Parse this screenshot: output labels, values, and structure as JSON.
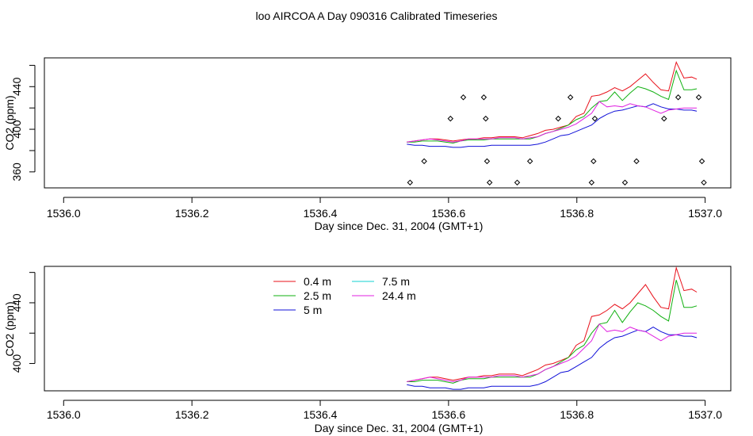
{
  "title": "loo AIRCOA A  Day 090316  Calibrated Timeseries",
  "colors": {
    "s04": "#e8101a",
    "s25": "#10b010",
    "s5": "#1010d8",
    "s75": "#10d0d0",
    "s244": "#e020e0"
  },
  "chart_data": [
    {
      "type": "line",
      "xlabel": "Day since Dec. 31, 2004 (GMT+1)",
      "ylabel": "CO2 (ppm)",
      "xlim": [
        1535.97,
        1537.04
      ],
      "ylim": [
        345,
        467
      ],
      "xticks": [
        1536.0,
        1536.2,
        1536.4,
        1536.6,
        1536.8,
        1537.0
      ],
      "xtick_labels": [
        "1536.0",
        "1536.2",
        "1536.4",
        "1536.6",
        "1536.8",
        "1537.0"
      ],
      "yticks": [
        360,
        380,
        400,
        420,
        440,
        460
      ],
      "ytick_labels": [
        "360",
        "",
        "400",
        "",
        "440",
        ""
      ],
      "grid": false,
      "x": [
        1536.535,
        1536.547,
        1536.559,
        1536.571,
        1536.583,
        1536.595,
        1536.607,
        1536.619,
        1536.631,
        1536.643,
        1536.655,
        1536.667,
        1536.679,
        1536.691,
        1536.703,
        1536.715,
        1536.727,
        1536.739,
        1536.751,
        1536.763,
        1536.775,
        1536.787,
        1536.799,
        1536.811,
        1536.823,
        1536.835,
        1536.847,
        1536.859,
        1536.871,
        1536.883,
        1536.895,
        1536.907,
        1536.919,
        1536.931,
        1536.943,
        1536.955,
        1536.967,
        1536.979,
        1536.987
      ],
      "series": [
        {
          "color_key": "s04",
          "values": [
            388,
            389,
            390,
            391,
            391,
            390,
            389,
            390,
            391,
            391,
            392,
            392,
            393,
            393,
            393,
            392,
            394,
            396,
            399,
            400,
            402,
            404,
            412,
            415,
            431,
            432,
            435,
            439,
            436,
            440,
            446,
            452,
            444,
            437,
            436,
            463,
            448,
            449,
            447
          ]
        },
        {
          "color_key": "s25",
          "values": [
            388,
            388,
            389,
            389,
            389,
            388,
            387,
            389,
            390,
            390,
            390,
            391,
            391,
            391,
            391,
            391,
            391,
            393,
            396,
            398,
            401,
            404,
            409,
            412,
            420,
            426,
            427,
            435,
            427,
            434,
            440,
            438,
            435,
            431,
            428,
            455,
            437,
            437,
            438
          ]
        },
        {
          "color_key": "s5",
          "values": [
            386,
            385,
            385,
            384,
            384,
            384,
            383,
            383,
            384,
            384,
            384,
            385,
            385,
            385,
            385,
            385,
            385,
            386,
            388,
            391,
            394,
            395,
            398,
            401,
            404,
            410,
            414,
            417,
            418,
            420,
            422,
            421,
            424,
            421,
            419,
            419,
            418,
            418,
            417
          ]
        },
        {
          "color_key": "s244",
          "values": [
            388,
            389,
            390,
            391,
            390,
            389,
            388,
            389,
            391,
            391,
            391,
            391,
            392,
            392,
            392,
            391,
            392,
            393,
            396,
            398,
            400,
            402,
            405,
            410,
            415,
            426,
            421,
            422,
            421,
            424,
            422,
            421,
            418,
            415,
            418,
            419,
            420,
            420,
            420
          ]
        }
      ],
      "scatter": {
        "color": "#000000",
        "x": [
          1536.54,
          1536.562,
          1536.603,
          1536.623,
          1536.655,
          1536.658,
          1536.66,
          1536.664,
          1536.707,
          1536.727,
          1536.771,
          1536.79,
          1536.823,
          1536.826,
          1536.828,
          1536.875,
          1536.893,
          1536.936,
          1536.958,
          1536.99,
          1536.995,
          1536.998
        ],
        "y": [
          350,
          370,
          410,
          430,
          430,
          410,
          370,
          350,
          350,
          370,
          410,
          430,
          350,
          370,
          410,
          350,
          370,
          410,
          430,
          430,
          370,
          350
        ]
      }
    },
    {
      "type": "line",
      "xlabel": "Day since Dec. 31, 2004 (GMT+1)",
      "ylabel": "CO2 (ppm)",
      "xlim": [
        1535.97,
        1537.04
      ],
      "ylim": [
        382,
        464
      ],
      "xticks": [
        1536.0,
        1536.2,
        1536.4,
        1536.6,
        1536.8,
        1537.0
      ],
      "xtick_labels": [
        "1536.0",
        "1536.2",
        "1536.4",
        "1536.6",
        "1536.8",
        "1537.0"
      ],
      "yticks": [
        400,
        420,
        440,
        460
      ],
      "ytick_labels": [
        "400",
        "",
        "440",
        ""
      ],
      "grid": false,
      "legend": {
        "position": "top-center",
        "entries": [
          {
            "label": "0.4 m",
            "color_key": "s04"
          },
          {
            "label": "2.5 m",
            "color_key": "s25"
          },
          {
            "label": "5 m",
            "color_key": "s5"
          },
          {
            "label": "7.5 m",
            "color_key": "s75"
          },
          {
            "label": "24.4 m",
            "color_key": "s244"
          }
        ]
      },
      "x": [
        1536.535,
        1536.547,
        1536.559,
        1536.571,
        1536.583,
        1536.595,
        1536.607,
        1536.619,
        1536.631,
        1536.643,
        1536.655,
        1536.667,
        1536.679,
        1536.691,
        1536.703,
        1536.715,
        1536.727,
        1536.739,
        1536.751,
        1536.763,
        1536.775,
        1536.787,
        1536.799,
        1536.811,
        1536.823,
        1536.835,
        1536.847,
        1536.859,
        1536.871,
        1536.883,
        1536.895,
        1536.907,
        1536.919,
        1536.931,
        1536.943,
        1536.955,
        1536.967,
        1536.979,
        1536.987
      ],
      "series": [
        {
          "color_key": "s04",
          "values": [
            388,
            389,
            390,
            391,
            391,
            390,
            389,
            390,
            391,
            391,
            392,
            392,
            393,
            393,
            393,
            392,
            394,
            396,
            399,
            400,
            402,
            404,
            412,
            415,
            431,
            432,
            435,
            439,
            436,
            440,
            446,
            452,
            444,
            437,
            436,
            463,
            448,
            449,
            447
          ]
        },
        {
          "color_key": "s25",
          "values": [
            388,
            388,
            389,
            389,
            389,
            388,
            387,
            389,
            390,
            390,
            390,
            391,
            391,
            391,
            391,
            391,
            391,
            393,
            396,
            398,
            401,
            404,
            409,
            412,
            420,
            426,
            427,
            435,
            427,
            434,
            440,
            438,
            435,
            431,
            428,
            455,
            437,
            437,
            438
          ]
        },
        {
          "color_key": "s5",
          "values": [
            386,
            385,
            385,
            384,
            384,
            384,
            383,
            383,
            384,
            384,
            384,
            385,
            385,
            385,
            385,
            385,
            385,
            386,
            388,
            391,
            394,
            395,
            398,
            401,
            404,
            410,
            414,
            417,
            418,
            420,
            422,
            421,
            424,
            421,
            419,
            419,
            418,
            418,
            417
          ]
        },
        {
          "color_key": "s244",
          "values": [
            388,
            389,
            390,
            391,
            390,
            389,
            388,
            389,
            391,
            391,
            391,
            391,
            392,
            392,
            392,
            391,
            392,
            393,
            396,
            398,
            400,
            402,
            405,
            410,
            415,
            426,
            421,
            422,
            421,
            424,
            422,
            421,
            418,
            415,
            418,
            419,
            420,
            420,
            420
          ]
        }
      ]
    }
  ]
}
